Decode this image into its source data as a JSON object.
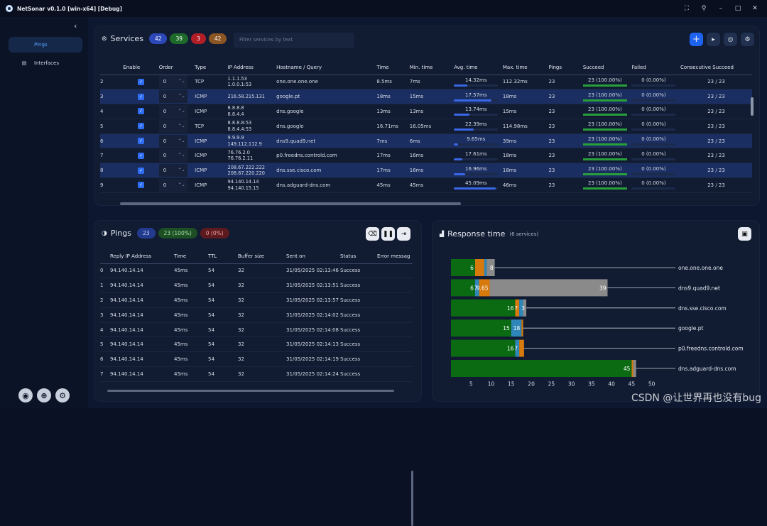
{
  "window": {
    "title": "NetSonar v0.1.0   [win-x64] [Debug]"
  },
  "sidebar": {
    "items": [
      {
        "label": "Pings",
        "icon": "ping-icon",
        "active": true
      },
      {
        "label": "Interfaces",
        "icon": "network-card-icon",
        "active": false
      }
    ]
  },
  "services": {
    "title": "Services",
    "badges": [
      "42",
      "39",
      "3",
      "42"
    ],
    "filter_placeholder": "Filter services by text",
    "columns": [
      "",
      "Enable",
      "Order",
      "Type",
      "IP Address",
      "Hostname / Query",
      "Time",
      "Min. time",
      "Avg. time",
      "Max. time",
      "Pings",
      "Succeed",
      "Failed",
      "Consecutive Succeed"
    ],
    "rows": [
      {
        "idx": "2",
        "order": "0",
        "type": "TCP",
        "ip1": "1.1.1.53",
        "ip2": "1.0.0.1:53",
        "host": "one.one.one.one",
        "time": "8.5ms",
        "min": "7ms",
        "avg": "14.32ms",
        "avg_frac": 0.3,
        "max": "112.32ms",
        "pings": "23",
        "succeed": "23 (100.00%)",
        "failed": "0 (0.00%)",
        "consec": "23 / 23",
        "sel": false
      },
      {
        "idx": "3",
        "order": "0",
        "type": "ICMP",
        "ip1": "216.58.215.131",
        "ip2": "",
        "host": "google.pt",
        "time": "18ms",
        "min": "15ms",
        "avg": "17.57ms",
        "avg_frac": 0.85,
        "max": "18ms",
        "pings": "23",
        "succeed": "23 (100.00%)",
        "failed": "0 (0.00%)",
        "consec": "23 / 23",
        "sel": true
      },
      {
        "idx": "4",
        "order": "0",
        "type": "ICMP",
        "ip1": "8.8.8.8",
        "ip2": "8.8.4.4",
        "host": "dns.google",
        "time": "13ms",
        "min": "13ms",
        "avg": "13.74ms",
        "avg_frac": 0.35,
        "max": "15ms",
        "pings": "23",
        "succeed": "23 (100.00%)",
        "failed": "0 (0.00%)",
        "consec": "23 / 23",
        "sel": false
      },
      {
        "idx": "5",
        "order": "0",
        "type": "TCP",
        "ip1": "8.8.8.8:53",
        "ip2": "8.8.4.4:53",
        "host": "dns.google",
        "time": "16.71ms",
        "min": "16.05ms",
        "avg": "22.39ms",
        "avg_frac": 0.45,
        "max": "114.98ms",
        "pings": "23",
        "succeed": "23 (100.00%)",
        "failed": "0 (0.00%)",
        "consec": "23 / 23",
        "sel": false
      },
      {
        "idx": "6",
        "order": "0",
        "type": "ICMP",
        "ip1": "9.9.9.9",
        "ip2": "149.112.112.9",
        "host": "dns9.quad9.net",
        "time": "7ms",
        "min": "6ms",
        "avg": "9.65ms",
        "avg_frac": 0.1,
        "max": "39ms",
        "pings": "23",
        "succeed": "23 (100.00%)",
        "failed": "0 (0.00%)",
        "consec": "23 / 23",
        "sel": true
      },
      {
        "idx": "7",
        "order": "0",
        "type": "ICMP",
        "ip1": "76.76.2.0",
        "ip2": "76.76.2.11",
        "host": "p0.freedns.controld.com",
        "time": "17ms",
        "min": "16ms",
        "avg": "17.61ms",
        "avg_frac": 0.2,
        "max": "18ms",
        "pings": "23",
        "succeed": "23 (100.00%)",
        "failed": "0 (0.00%)",
        "consec": "23 / 23",
        "sel": false
      },
      {
        "idx": "8",
        "order": "0",
        "type": "ICMP",
        "ip1": "208.67.222.222",
        "ip2": "208.67.220.220",
        "host": "dns.sse.cisco.com",
        "time": "17ms",
        "min": "16ms",
        "avg": "16.96ms",
        "avg_frac": 0.25,
        "max": "18ms",
        "pings": "23",
        "succeed": "23 (100.00%)",
        "failed": "0 (0.00%)",
        "consec": "23 / 23",
        "sel": true
      },
      {
        "idx": "9",
        "order": "0",
        "type": "ICMP",
        "ip1": "94.140.14.14",
        "ip2": "94.140.15.15",
        "host": "dns.adguard-dns.com",
        "time": "45ms",
        "min": "45ms",
        "avg": "45.09ms",
        "avg_frac": 0.95,
        "max": "46ms",
        "pings": "23",
        "succeed": "23 (100.00%)",
        "failed": "0 (0.00%)",
        "consec": "23 / 23",
        "sel": false
      }
    ]
  },
  "pings": {
    "title": "Pings",
    "badges": [
      "23",
      "23 (100%)",
      "0 (0%)"
    ],
    "columns": [
      "",
      "Reply IP Address",
      "Time",
      "TTL",
      "Buffer size",
      "Sent on",
      "Status",
      "Error messag"
    ],
    "rows": [
      {
        "idx": "0",
        "ip": "94.140.14.14",
        "time": "45ms",
        "ttl": "54",
        "buf": "32",
        "sent": "31/05/2025 02:13:46",
        "status": "Success"
      },
      {
        "idx": "1",
        "ip": "94.140.14.14",
        "time": "45ms",
        "ttl": "54",
        "buf": "32",
        "sent": "31/05/2025 02:13:51",
        "status": "Success"
      },
      {
        "idx": "2",
        "ip": "94.140.14.14",
        "time": "45ms",
        "ttl": "54",
        "buf": "32",
        "sent": "31/05/2025 02:13:57",
        "status": "Success"
      },
      {
        "idx": "3",
        "ip": "94.140.14.14",
        "time": "45ms",
        "ttl": "54",
        "buf": "32",
        "sent": "31/05/2025 02:14:02",
        "status": "Success"
      },
      {
        "idx": "4",
        "ip": "94.140.14.14",
        "time": "45ms",
        "ttl": "54",
        "buf": "32",
        "sent": "31/05/2025 02:14:08",
        "status": "Success"
      },
      {
        "idx": "5",
        "ip": "94.140.14.14",
        "time": "45ms",
        "ttl": "54",
        "buf": "32",
        "sent": "31/05/2025 02:14:13",
        "status": "Success"
      },
      {
        "idx": "6",
        "ip": "94.140.14.14",
        "time": "45ms",
        "ttl": "54",
        "buf": "32",
        "sent": "31/05/2025 02:14:19",
        "status": "Success"
      },
      {
        "idx": "7",
        "ip": "94.140.14.14",
        "time": "45ms",
        "ttl": "54",
        "buf": "32",
        "sent": "31/05/2025 02:14:24",
        "status": "Success"
      }
    ]
  },
  "response": {
    "title": "Response time",
    "subtitle": "(6 services)"
  },
  "chart_data": {
    "type": "bar",
    "orientation": "horizontal",
    "stacked": true,
    "categories": [
      "one.one.one.one",
      "dns9.quad9.net",
      "dns.sse.cisco.com",
      "google.pt",
      "p0.freedns.controld.com",
      "dns.adguard-dns.com"
    ],
    "xticks": [
      "5",
      "10",
      "15",
      "20",
      "25",
      "30",
      "35",
      "40",
      "45",
      "50"
    ],
    "xlim": [
      0,
      52
    ],
    "segments": [
      [
        {
          "v": 6,
          "c": "#0a6b12",
          "label": "6"
        },
        {
          "v": 2.3,
          "c": "#d67a0e",
          "label": ""
        },
        {
          "v": 0.6,
          "c": "#2f86b8",
          "label": ""
        },
        {
          "v": 2,
          "c": "#8a8a8a",
          "label": "8"
        }
      ],
      [
        {
          "v": 6,
          "c": "#0a6b12",
          "label": "6"
        },
        {
          "v": 1,
          "c": "#2f86b8",
          "label": "7"
        },
        {
          "v": 2.65,
          "c": "#d67a0e",
          "label": "9.65"
        },
        {
          "v": 29.35,
          "c": "#8a8a8a",
          "label": "39"
        }
      ],
      [
        {
          "v": 16,
          "c": "#0a6b12",
          "label": "16"
        },
        {
          "v": 1,
          "c": "#d67a0e",
          "label": "7"
        },
        {
          "v": 0.96,
          "c": "#2f86b8",
          "label": ""
        },
        {
          "v": 0.8,
          "c": "#8a8a8a",
          "label": "3"
        }
      ],
      [
        {
          "v": 15,
          "c": "#0a6b12",
          "label": "15"
        },
        {
          "v": 2.57,
          "c": "#2f86b8",
          "label": "18"
        },
        {
          "v": 0.4,
          "c": "#d67a0e",
          "label": ""
        }
      ],
      [
        {
          "v": 16,
          "c": "#0a6b12",
          "label": "16"
        },
        {
          "v": 1,
          "c": "#2f86b8",
          "label": "7"
        },
        {
          "v": 1.2,
          "c": "#d67a0e",
          "label": ""
        }
      ],
      [
        {
          "v": 45,
          "c": "#0a6b12",
          "label": "45"
        },
        {
          "v": 0.4,
          "c": "#d67a0e",
          "label": ""
        },
        {
          "v": 0.7,
          "c": "#8a8a8a",
          "label": ""
        }
      ]
    ]
  },
  "watermark": "CSDN @让世界再也没有bug"
}
